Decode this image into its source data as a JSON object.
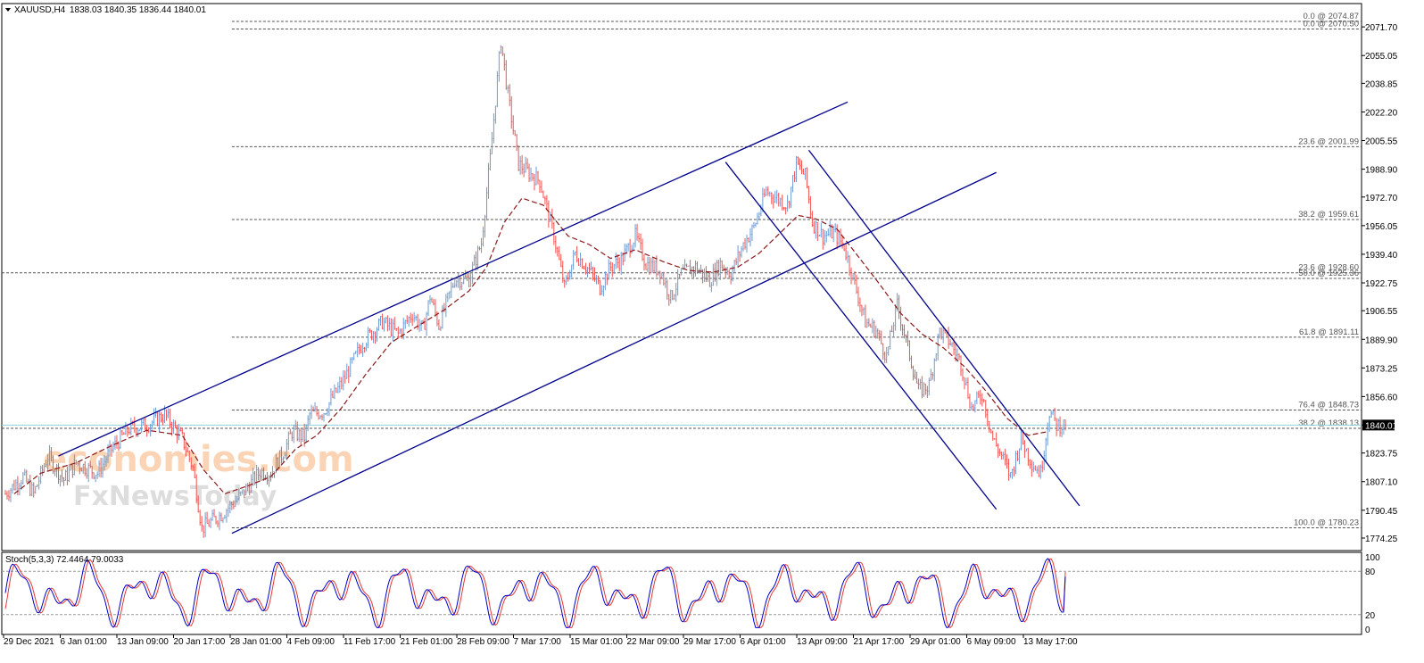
{
  "header": {
    "symbol": "XAUUSD,H4",
    "ohlc": "1838.03 1840.35 1836.44 1840.01"
  },
  "watermark": {
    "line1": "economies.com",
    "line2": "FxNewsToday"
  },
  "colors": {
    "bull": "#6b9bd1",
    "bear": "#ef5350",
    "ma": "#8b1a1a",
    "channel": "#00008b",
    "fib": "#555555",
    "stoch_main": "#0000cd",
    "stoch_signal": "#e53935",
    "price_line": "#8fd3dd"
  },
  "current_price": 1840.01,
  "chart_data": {
    "type": "candlestick",
    "symbol": "XAUUSD",
    "timeframe": "H4",
    "ylim": [
      1774.25,
      2078.0
    ],
    "y_ticks": [
      2071.7,
      2055.05,
      2038.85,
      2022.2,
      2005.55,
      1988.9,
      1972.7,
      1956.05,
      1939.4,
      1922.75,
      1906.55,
      1889.9,
      1873.25,
      1856.6,
      1840.01,
      1823.75,
      1807.1,
      1790.45,
      1774.25
    ],
    "x_ticks": [
      "29 Dec 2021",
      "6 Jan 01:00",
      "13 Jan 09:00",
      "20 Jan 17:00",
      "28 Jan 01:00",
      "4 Feb 09:00",
      "11 Feb 17:00",
      "21 Feb 01:00",
      "28 Feb 09:00",
      "7 Mar 17:00",
      "15 Mar 01:00",
      "22 Mar 09:00",
      "29 Mar 17:00",
      "6 Apr 01:00",
      "13 Apr 09:00",
      "21 Apr 17:00",
      "29 Apr 01:00",
      "6 May 09:00",
      "13 May 17:00"
    ],
    "price_path": [
      [
        0,
        1800
      ],
      [
        10,
        1810
      ],
      [
        16,
        1800
      ],
      [
        24,
        1822
      ],
      [
        33,
        1808
      ],
      [
        40,
        1818
      ],
      [
        52,
        1812
      ],
      [
        60,
        1826
      ],
      [
        70,
        1838
      ],
      [
        80,
        1840
      ],
      [
        90,
        1846
      ],
      [
        100,
        1832
      ],
      [
        106,
        1815
      ],
      [
        111,
        1780
      ],
      [
        122,
        1788
      ],
      [
        134,
        1800
      ],
      [
        144,
        1813
      ],
      [
        150,
        1812
      ],
      [
        158,
        1826
      ],
      [
        162,
        1836
      ],
      [
        169,
        1833
      ],
      [
        172,
        1846
      ],
      [
        180,
        1848
      ],
      [
        191,
        1866
      ],
      [
        202,
        1888
      ],
      [
        213,
        1900
      ],
      [
        222,
        1893
      ],
      [
        230,
        1905
      ],
      [
        236,
        1895
      ],
      [
        240,
        1915
      ],
      [
        245,
        1898
      ],
      [
        254,
        1925
      ],
      [
        262,
        1925
      ],
      [
        269,
        1946
      ],
      [
        274,
        1995
      ],
      [
        280,
        2064
      ],
      [
        284,
        2032
      ],
      [
        290,
        1992
      ],
      [
        298,
        1985
      ],
      [
        302,
        1982
      ],
      [
        310,
        1950
      ],
      [
        316,
        1920
      ],
      [
        322,
        1940
      ],
      [
        330,
        1930
      ],
      [
        336,
        1920
      ],
      [
        342,
        1932
      ],
      [
        348,
        1936
      ],
      [
        356,
        1950
      ],
      [
        362,
        1934
      ],
      [
        370,
        1930
      ],
      [
        376,
        1914
      ],
      [
        382,
        1928
      ],
      [
        390,
        1932
      ],
      [
        398,
        1924
      ],
      [
        404,
        1934
      ],
      [
        410,
        1928
      ],
      [
        417,
        1945
      ],
      [
        423,
        1955
      ],
      [
        430,
        1976
      ],
      [
        436,
        1972
      ],
      [
        442,
        1968
      ],
      [
        447,
        1992
      ],
      [
        452,
        1985
      ],
      [
        456,
        1958
      ],
      [
        462,
        1950
      ],
      [
        468,
        1952
      ],
      [
        474,
        1944
      ],
      [
        480,
        1922
      ],
      [
        486,
        1900
      ],
      [
        492,
        1895
      ],
      [
        498,
        1880
      ],
      [
        504,
        1910
      ],
      [
        510,
        1885
      ],
      [
        516,
        1860
      ],
      [
        522,
        1863
      ],
      [
        528,
        1895
      ],
      [
        534,
        1888
      ],
      [
        540,
        1876
      ],
      [
        546,
        1850
      ],
      [
        552,
        1858
      ],
      [
        558,
        1832
      ],
      [
        564,
        1820
      ],
      [
        568,
        1810
      ],
      [
        574,
        1832
      ],
      [
        580,
        1818
      ],
      [
        585,
        1812
      ],
      [
        590,
        1848
      ],
      [
        594,
        1840
      ]
    ],
    "moving_average": [
      [
        5,
        1800
      ],
      [
        20,
        1812
      ],
      [
        40,
        1818
      ],
      [
        60,
        1828
      ],
      [
        80,
        1837
      ],
      [
        100,
        1834
      ],
      [
        112,
        1814
      ],
      [
        124,
        1800
      ],
      [
        138,
        1805
      ],
      [
        150,
        1810
      ],
      [
        164,
        1826
      ],
      [
        176,
        1834
      ],
      [
        190,
        1850
      ],
      [
        204,
        1870
      ],
      [
        218,
        1888
      ],
      [
        232,
        1897
      ],
      [
        248,
        1907
      ],
      [
        262,
        1918
      ],
      [
        272,
        1932
      ],
      [
        282,
        1958
      ],
      [
        292,
        1972
      ],
      [
        304,
        1968
      ],
      [
        318,
        1950
      ],
      [
        330,
        1945
      ],
      [
        342,
        1937
      ],
      [
        356,
        1942
      ],
      [
        372,
        1935
      ],
      [
        386,
        1930
      ],
      [
        400,
        1929
      ],
      [
        414,
        1932
      ],
      [
        426,
        1940
      ],
      [
        438,
        1952
      ],
      [
        448,
        1962
      ],
      [
        458,
        1960
      ],
      [
        470,
        1954
      ],
      [
        482,
        1938
      ],
      [
        494,
        1922
      ],
      [
        506,
        1905
      ],
      [
        518,
        1893
      ],
      [
        530,
        1885
      ],
      [
        542,
        1874
      ],
      [
        554,
        1860
      ],
      [
        566,
        1844
      ],
      [
        578,
        1834
      ],
      [
        588,
        1836
      ]
    ],
    "fibonacci": [
      {
        "label": "0.0 @ 2074.87",
        "value": 2074.87,
        "start": 128
      },
      {
        "label": "0.0 @ 2070.50",
        "value": 2070.5,
        "start": 128
      },
      {
        "label": "23.6 @ 2001.99",
        "value": 2001.99,
        "start": 128
      },
      {
        "label": "38.2 @ 1959.61",
        "value": 1959.61,
        "start": 128
      },
      {
        "label": "23.6 @ 1928.60",
        "value": 1928.6,
        "start": 0
      },
      {
        "label": "50.0 @ 1925.36",
        "value": 1925.36,
        "start": 128
      },
      {
        "label": "61.8 @ 1891.11",
        "value": 1891.11,
        "start": 128
      },
      {
        "label": "76.4 @ 1848.73",
        "value": 1848.73,
        "start": 128
      },
      {
        "label": "38.2 @ 1838.13",
        "value": 1838.13,
        "start": 0
      },
      {
        "label": "100.0 @ 1780.23",
        "value": 1780.23,
        "start": 128
      }
    ],
    "trend_lines": [
      {
        "name": "ascending-channel-upper",
        "points": [
          [
            30,
            1822
          ],
          [
            476,
            2028
          ]
        ]
      },
      {
        "name": "ascending-channel-lower",
        "points": [
          [
            128,
            1777
          ],
          [
            560,
            1987
          ]
        ]
      },
      {
        "name": "descending-channel-upper",
        "points": [
          [
            454,
            2000
          ],
          [
            607,
            1793
          ]
        ]
      },
      {
        "name": "descending-channel-lower",
        "points": [
          [
            407,
            1993
          ],
          [
            560,
            1791
          ]
        ]
      }
    ],
    "stochastic": {
      "label": "Stoch(5,3,3) 72.4464 79.0033",
      "main": 72.4464,
      "signal": 79.0033,
      "ylim": [
        0,
        100
      ],
      "levels": [
        80,
        20
      ],
      "y_ticks": [
        100,
        80,
        20,
        0
      ]
    }
  }
}
